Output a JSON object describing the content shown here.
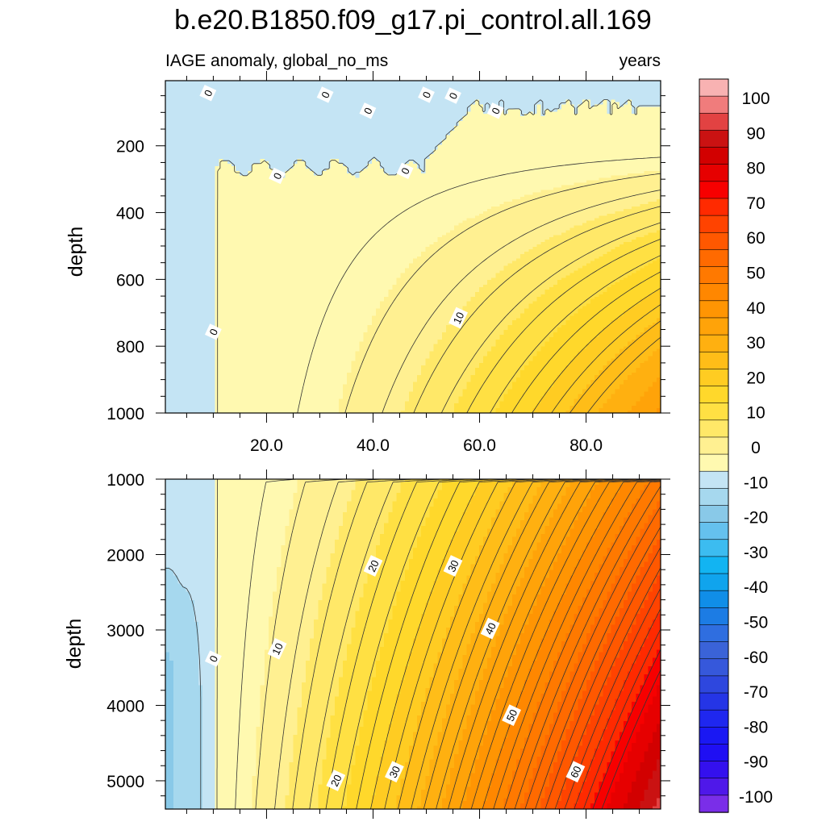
{
  "chart_data": {
    "type": "contour",
    "title": "b.e20.B1850.f09_g17.pi_control.all.169",
    "subtitle_left": "IAGE anomaly, global_no_ms",
    "subtitle_right": "years",
    "x_range": [
      1,
      94
    ],
    "x_ticks": [
      20,
      40,
      60,
      80
    ],
    "x_tick_labels": [
      "20.0",
      "40.0",
      "60.0",
      "80.0"
    ],
    "panels": [
      {
        "name": "upper",
        "ylabel": "depth",
        "ylim": [
          5,
          1000
        ],
        "y_ticks": [
          200,
          400,
          600,
          800,
          1000
        ],
        "y_tick_labels": [
          "200",
          "400",
          "600",
          "800",
          "1000"
        ],
        "contour_labels": [
          {
            "text": "0",
            "x": 9,
            "y": 42
          },
          {
            "text": "0",
            "x": 31,
            "y": 47
          },
          {
            "text": "0",
            "x": 39,
            "y": 95
          },
          {
            "text": "0",
            "x": 50,
            "y": 47
          },
          {
            "text": "0",
            "x": 55,
            "y": 50
          },
          {
            "text": "0",
            "x": 63,
            "y": 95
          },
          {
            "text": "0",
            "x": 22,
            "y": 290
          },
          {
            "text": "0",
            "x": 46,
            "y": 275
          },
          {
            "text": "0",
            "x": 10,
            "y": 757
          },
          {
            "text": "10",
            "x": 56,
            "y": 715
          }
        ]
      },
      {
        "name": "lower",
        "ylabel": "depth",
        "ylim": [
          1000,
          5375
        ],
        "y_ticks": [
          1000,
          2000,
          3000,
          4000,
          5000
        ],
        "y_tick_labels": [
          "1000",
          "2000",
          "3000",
          "4000",
          "5000"
        ],
        "contour_labels": [
          {
            "text": "0",
            "x": 10,
            "y": 3380
          },
          {
            "text": "10",
            "x": 22,
            "y": 3250
          },
          {
            "text": "20",
            "x": 40,
            "y": 2150
          },
          {
            "text": "30",
            "x": 55,
            "y": 2150
          },
          {
            "text": "40",
            "x": 62,
            "y": 2980
          },
          {
            "text": "50",
            "x": 66,
            "y": 4130
          },
          {
            "text": "60",
            "x": 78,
            "y": 4880
          },
          {
            "text": "20",
            "x": 33,
            "y": 4995
          },
          {
            "text": "30",
            "x": 44,
            "y": 4880
          }
        ]
      }
    ],
    "colorbar": {
      "labels": [
        "100",
        "90",
        "80",
        "70",
        "60",
        "50",
        "40",
        "30",
        "20",
        "10",
        "0",
        "-10",
        "-20",
        "-30",
        "-40",
        "-50",
        "-60",
        "-70",
        "-80",
        "-90",
        "-100"
      ],
      "contour_interval": 2.5
    }
  }
}
